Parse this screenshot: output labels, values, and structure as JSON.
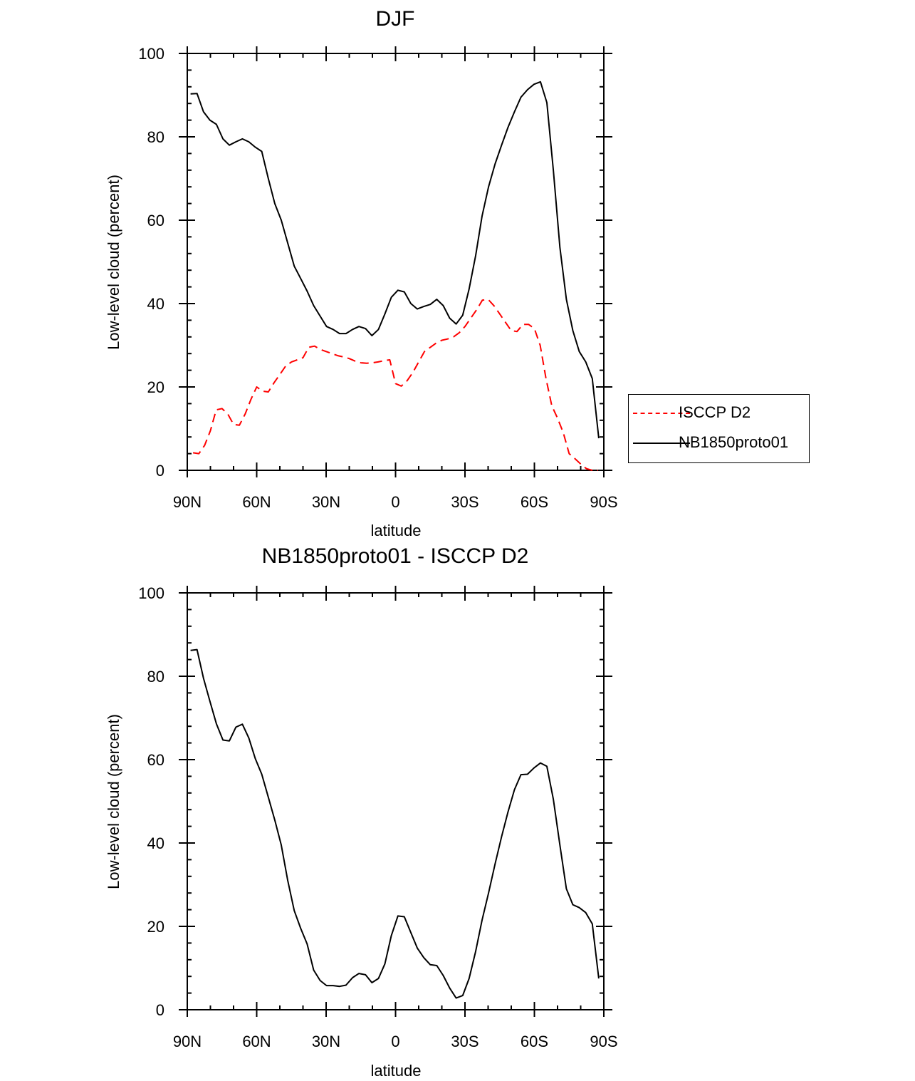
{
  "chart_data": [
    {
      "type": "line",
      "title": "DJF",
      "xlabel": "latitude",
      "ylabel": "Low-level cloud (percent)",
      "xlim": [
        -90,
        90
      ],
      "ylim": [
        0,
        100
      ],
      "xticks": [
        -90,
        -60,
        -30,
        0,
        30,
        60,
        90
      ],
      "xtick_labels": [
        "90N",
        "60N",
        "30N",
        "0",
        "30S",
        "60S",
        "90S"
      ],
      "yticks": [
        0,
        20,
        40,
        60,
        80,
        100
      ],
      "ytick_labels": [
        "0",
        "20",
        "40",
        "60",
        "80",
        "100"
      ],
      "legend_position": "right",
      "series": [
        {
          "name": "ISCCP D2",
          "color": "#ff0000",
          "style": "dashed",
          "x": [
            -87.5,
            -85,
            -82.5,
            -80,
            -77.5,
            -75,
            -72.5,
            -70,
            -67.5,
            -65,
            -62.5,
            -60,
            -57.5,
            -55,
            -52.5,
            -50,
            -47.5,
            -45,
            -42.5,
            -40,
            -37.5,
            -35,
            -32.5,
            -30,
            -27.5,
            -25,
            -22.5,
            -20,
            -17.5,
            -15,
            -12.5,
            -10,
            -7.5,
            -5,
            -2.5,
            0,
            2.5,
            5,
            7.5,
            10,
            12.5,
            15,
            17.5,
            20,
            22.5,
            25,
            27.5,
            30,
            32.5,
            35,
            37.5,
            40,
            42.5,
            45,
            47.5,
            50,
            52.5,
            55,
            57.5,
            60,
            62.5,
            65,
            67.5,
            70,
            72.5,
            75,
            77.5,
            80,
            82.5,
            85,
            87.5
          ],
          "y": [
            4.2,
            4.0,
            6.0,
            9.5,
            14.5,
            14.8,
            13.5,
            11.0,
            10.8,
            13.5,
            17.0,
            20.0,
            19.0,
            18.8,
            21.0,
            23.0,
            25.0,
            26.0,
            26.5,
            27.0,
            29.5,
            29.8,
            29.0,
            28.5,
            28.0,
            27.5,
            27.2,
            26.8,
            26.2,
            25.8,
            25.7,
            25.8,
            26.0,
            26.3,
            26.5,
            20.8,
            20.2,
            21.5,
            23.5,
            26.0,
            28.5,
            29.5,
            30.5,
            31.2,
            31.5,
            32.0,
            33.0,
            34.5,
            36.5,
            38.5,
            40.8,
            41.0,
            39.5,
            37.5,
            35.5,
            33.5,
            33.3,
            35.0,
            35.0,
            34.0,
            30.0,
            22.0,
            15.5,
            12.5,
            9.0,
            4.0,
            2.8,
            1.5,
            0.4,
            0.0,
            0.0
          ]
        },
        {
          "name": "NB1850proto01",
          "color": "#000000",
          "style": "solid",
          "x": [
            -88.6,
            -85.8,
            -83,
            -80.2,
            -77.4,
            -74.6,
            -71.8,
            -69,
            -66.2,
            -63.4,
            -60.6,
            -57.8,
            -55,
            -52.2,
            -49.4,
            -46.6,
            -43.8,
            -41,
            -38.2,
            -35.4,
            -32.6,
            -29.8,
            -27,
            -24.2,
            -21.4,
            -18.6,
            -15.8,
            -13,
            -10.2,
            -7.4,
            -4.6,
            -1.8,
            1,
            3.8,
            6.6,
            9.4,
            12.2,
            15,
            17.8,
            20.6,
            23.4,
            26.2,
            29,
            31.8,
            34.6,
            37.4,
            40.2,
            43,
            45.8,
            48.6,
            51.4,
            54.2,
            57,
            59.8,
            62.6,
            65.4,
            68.2,
            71,
            73.8,
            76.6,
            79.4,
            82.2,
            85,
            87.8
          ],
          "y": [
            90.3,
            90.4,
            86.0,
            84.0,
            83.0,
            79.5,
            78.0,
            78.8,
            79.5,
            78.8,
            77.5,
            76.5,
            70.0,
            64.0,
            60.0,
            54.5,
            49.0,
            46.0,
            43.0,
            39.5,
            37.0,
            34.5,
            33.8,
            32.8,
            32.8,
            33.8,
            34.5,
            34.0,
            32.3,
            33.8,
            37.5,
            41.5,
            43.2,
            42.8,
            40.0,
            38.7,
            39.3,
            39.8,
            41.0,
            39.5,
            36.5,
            35.1,
            37.2,
            43.5,
            51.5,
            61.0,
            68.0,
            73.5,
            78.0,
            82.3,
            86.0,
            89.5,
            91.3,
            92.6,
            93.2,
            88.2,
            72.0,
            53.5,
            41.0,
            33.5,
            28.5,
            26.0,
            22.0,
            7.7
          ]
        }
      ]
    },
    {
      "type": "line",
      "title": "NB1850proto01 - ISCCP D2",
      "xlabel": "latitude",
      "ylabel": "Low-level cloud (percent)",
      "xlim": [
        -90,
        90
      ],
      "ylim": [
        0,
        100
      ],
      "xticks": [
        -90,
        -60,
        -30,
        0,
        30,
        60,
        90
      ],
      "xtick_labels": [
        "90N",
        "60N",
        "30N",
        "0",
        "30S",
        "60S",
        "90S"
      ],
      "yticks": [
        0,
        20,
        40,
        60,
        80,
        100
      ],
      "ytick_labels": [
        "0",
        "20",
        "40",
        "60",
        "80",
        "100"
      ],
      "series": [
        {
          "name": "NB1850proto01 - ISCCP D2",
          "color": "#000000",
          "style": "solid",
          "x": [
            -88.6,
            -85.8,
            -83,
            -80.2,
            -77.4,
            -74.6,
            -71.8,
            -69,
            -66.2,
            -63.4,
            -60.6,
            -57.8,
            -55,
            -52.2,
            -49.4,
            -46.6,
            -43.8,
            -41,
            -38.2,
            -35.4,
            -32.6,
            -29.8,
            -27,
            -24.2,
            -21.4,
            -18.6,
            -15.8,
            -13,
            -10.2,
            -7.4,
            -4.6,
            -1.8,
            1,
            3.8,
            6.6,
            9.4,
            12.2,
            15,
            17.8,
            20.6,
            23.4,
            26.2,
            29,
            31.8,
            34.6,
            37.4,
            40.2,
            43,
            45.8,
            48.6,
            51.4,
            54.2,
            57,
            59.8,
            62.6,
            65.4,
            68.2,
            71,
            73.8,
            76.6,
            79.4,
            82.2,
            85,
            87.8
          ],
          "y": [
            86.2,
            86.4,
            79.5,
            74.0,
            68.6,
            64.7,
            64.5,
            67.8,
            68.5,
            65.2,
            60.2,
            56.5,
            51.0,
            45.5,
            39.5,
            31.0,
            23.8,
            19.5,
            15.8,
            9.5,
            7.0,
            5.8,
            5.8,
            5.6,
            5.9,
            7.7,
            8.7,
            8.4,
            6.5,
            7.5,
            11.0,
            17.8,
            22.5,
            22.3,
            18.5,
            14.8,
            12.5,
            10.8,
            10.6,
            8.2,
            5.2,
            2.8,
            3.4,
            7.5,
            14.0,
            21.5,
            28.0,
            35.0,
            41.5,
            47.5,
            52.8,
            56.4,
            56.5,
            58.0,
            59.2,
            58.4,
            50.5,
            39.5,
            29.0,
            25.2,
            24.5,
            23.3,
            20.6,
            7.5
          ]
        }
      ]
    }
  ]
}
